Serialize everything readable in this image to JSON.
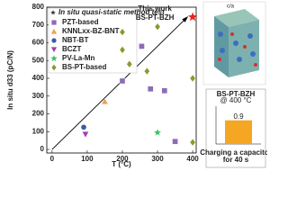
{
  "chart_data": [
    {
      "type": "scatter",
      "legend_title": "In situ quasi-static method test",
      "xlabel": "T (°C)",
      "ylabel": "In situ d33 (pC/N)",
      "xlim": [
        -15,
        410
      ],
      "xticks": [
        0,
        100,
        200,
        300,
        400
      ],
      "ylim": [
        -20,
        800
      ],
      "yticks": [
        0,
        100,
        200,
        300,
        400,
        500,
        600,
        700,
        800
      ],
      "legend": "upper left",
      "series": [
        {
          "name": "PZT-based",
          "color": "#8e6bb8",
          "marker": "square",
          "x": [
            200,
            255,
            280,
            320,
            350
          ],
          "values": [
            385,
            580,
            340,
            330,
            45
          ]
        },
        {
          "name": "KNNLxx-BZ-BNT",
          "color": "#f0a04b",
          "marker": "triangle",
          "x": [
            150
          ],
          "values": [
            270
          ]
        },
        {
          "name": "NBT-BT",
          "color": "#3b5ba9",
          "marker": "circle",
          "x": [
            90
          ],
          "values": [
            125
          ]
        },
        {
          "name": "BCZT",
          "color": "#9b3fb5",
          "marker": "triangle-down",
          "x": [
            95
          ],
          "values": [
            85
          ]
        },
        {
          "name": "PV-La-Mn",
          "color": "#3cbf6a",
          "marker": "star",
          "x": [
            300
          ],
          "values": [
            95
          ]
        },
        {
          "name": "BS-PT-based",
          "color": "#8a9a2a",
          "marker": "diamond",
          "x": [
            200,
            200,
            220,
            270,
            300,
            400,
            400
          ],
          "values": [
            660,
            560,
            480,
            440,
            690,
            400,
            40
          ]
        }
      ],
      "highlight": {
        "label": "This work",
        "name": "BS-PT-BZH",
        "color": "#e8231f",
        "marker": "star",
        "x": [
          400
        ],
        "values": [
          745
        ]
      }
    },
    {
      "type": "bar",
      "title": "BS-PT-BZH",
      "subtitle": "@ 400 °C",
      "categories": [
        null
      ],
      "values": [
        0.9
      ],
      "color": "#f5a623",
      "ylim": [
        0,
        1.3
      ],
      "caption": [
        "Charging a capacitor",
        "for 40 s"
      ]
    }
  ],
  "structure_image": {
    "labels": [
      "c/a"
    ]
  }
}
